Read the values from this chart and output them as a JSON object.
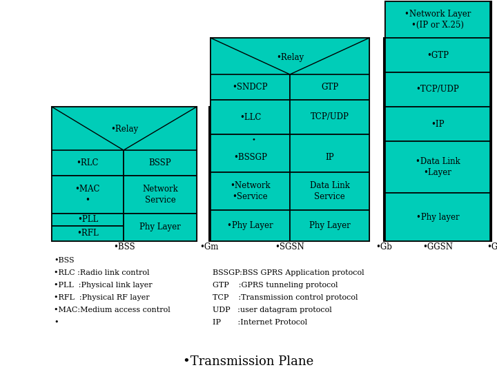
{
  "bg_color": "#ffffff",
  "teal": "#00CDB8",
  "title": "•Transmission Plane",
  "footnotes_left": [
    "•BSS",
    "•RLC :Radio link control",
    "•PLL  :Physical link layer",
    "•RFL  :Physical RF layer",
    "•MAC:Medium access control",
    "•"
  ],
  "footnotes_right": [
    "BSSGP:BSS GPRS Application protocol",
    "GTP    :GPRS tunneling protocol",
    "TCP    :Transmission control protocol",
    "UDP   :user datagram protocol",
    "IP       :Internet Protocol"
  ]
}
